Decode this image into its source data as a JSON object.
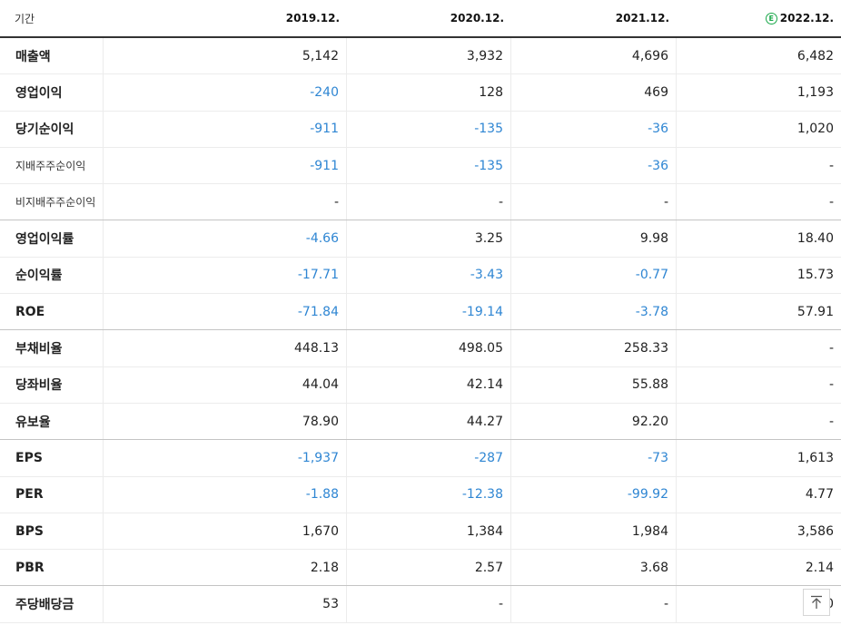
{
  "header": {
    "period_label": "기간",
    "columns": [
      "2019.12.",
      "2020.12.",
      "2021.12.",
      "2022.12."
    ],
    "estimate_badge": "E"
  },
  "rows": [
    {
      "label": "매출액",
      "values": [
        "5,142",
        "3,932",
        "4,696",
        "6,482"
      ]
    },
    {
      "label": "영업이익",
      "values": [
        "-240",
        "128",
        "469",
        "1,193"
      ]
    },
    {
      "label": "당기순이익",
      "values": [
        "-911",
        "-135",
        "-36",
        "1,020"
      ]
    },
    {
      "label": "지배주주순이익",
      "values": [
        "-911",
        "-135",
        "-36",
        "-"
      ]
    },
    {
      "label": "비지배주주순이익",
      "values": [
        "-",
        "-",
        "-",
        "-"
      ]
    },
    {
      "label": "영업이익률",
      "values": [
        "-4.66",
        "3.25",
        "9.98",
        "18.40"
      ]
    },
    {
      "label": "순이익률",
      "values": [
        "-17.71",
        "-3.43",
        "-0.77",
        "15.73"
      ]
    },
    {
      "label": "ROE",
      "values": [
        "-71.84",
        "-19.14",
        "-3.78",
        "57.91"
      ]
    },
    {
      "label": "부채비율",
      "values": [
        "448.13",
        "498.05",
        "258.33",
        "-"
      ]
    },
    {
      "label": "당좌비율",
      "values": [
        "44.04",
        "42.14",
        "55.88",
        "-"
      ]
    },
    {
      "label": "유보율",
      "values": [
        "78.90",
        "44.27",
        "92.20",
        "-"
      ]
    },
    {
      "label": "EPS",
      "values": [
        "-1,937",
        "-287",
        "-73",
        "1,613"
      ]
    },
    {
      "label": "PER",
      "values": [
        "-1.88",
        "-12.38",
        "-99.92",
        "4.77"
      ]
    },
    {
      "label": "BPS",
      "values": [
        "1,670",
        "1,384",
        "1,984",
        "3,586"
      ]
    },
    {
      "label": "PBR",
      "values": [
        "2.18",
        "2.57",
        "3.68",
        "2.14"
      ]
    },
    {
      "label": "주당배당금",
      "values": [
        "53",
        "-",
        "-",
        "0"
      ]
    }
  ],
  "colors": {
    "negative": "#2f86d3",
    "estimate_badge": "#1aa84a"
  },
  "top_button_icon": "arrow-up-to-top-icon"
}
